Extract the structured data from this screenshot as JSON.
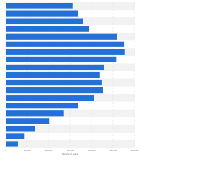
{
  "chart_data": {
    "type": "barh",
    "x_label": "Number of users",
    "categories": [
      null,
      null,
      null,
      null,
      null,
      null,
      null,
      null,
      null,
      null,
      null,
      null,
      null,
      null,
      null,
      null,
      null,
      null,
      null
    ],
    "values": [
      156000,
      168000,
      179000,
      194000,
      258000,
      276000,
      277000,
      257000,
      229000,
      219000,
      224000,
      227000,
      205000,
      168000,
      135000,
      102000,
      68000,
      44000,
      29000
    ],
    "color": "#2370d8",
    "xlim": [
      0,
      300000
    ],
    "xticks": [
      0,
      {
        "value": 50000,
        "label": "50,000"
      },
      {
        "value": 100000,
        "label": "100,000"
      },
      {
        "value": 150000,
        "label": "150,000"
      },
      {
        "value": 200000,
        "label": "200,000"
      },
      {
        "value": 250000,
        "label": "250,000"
      },
      {
        "value": 300000,
        "label": "300,000"
      }
    ],
    "grid": true
  }
}
